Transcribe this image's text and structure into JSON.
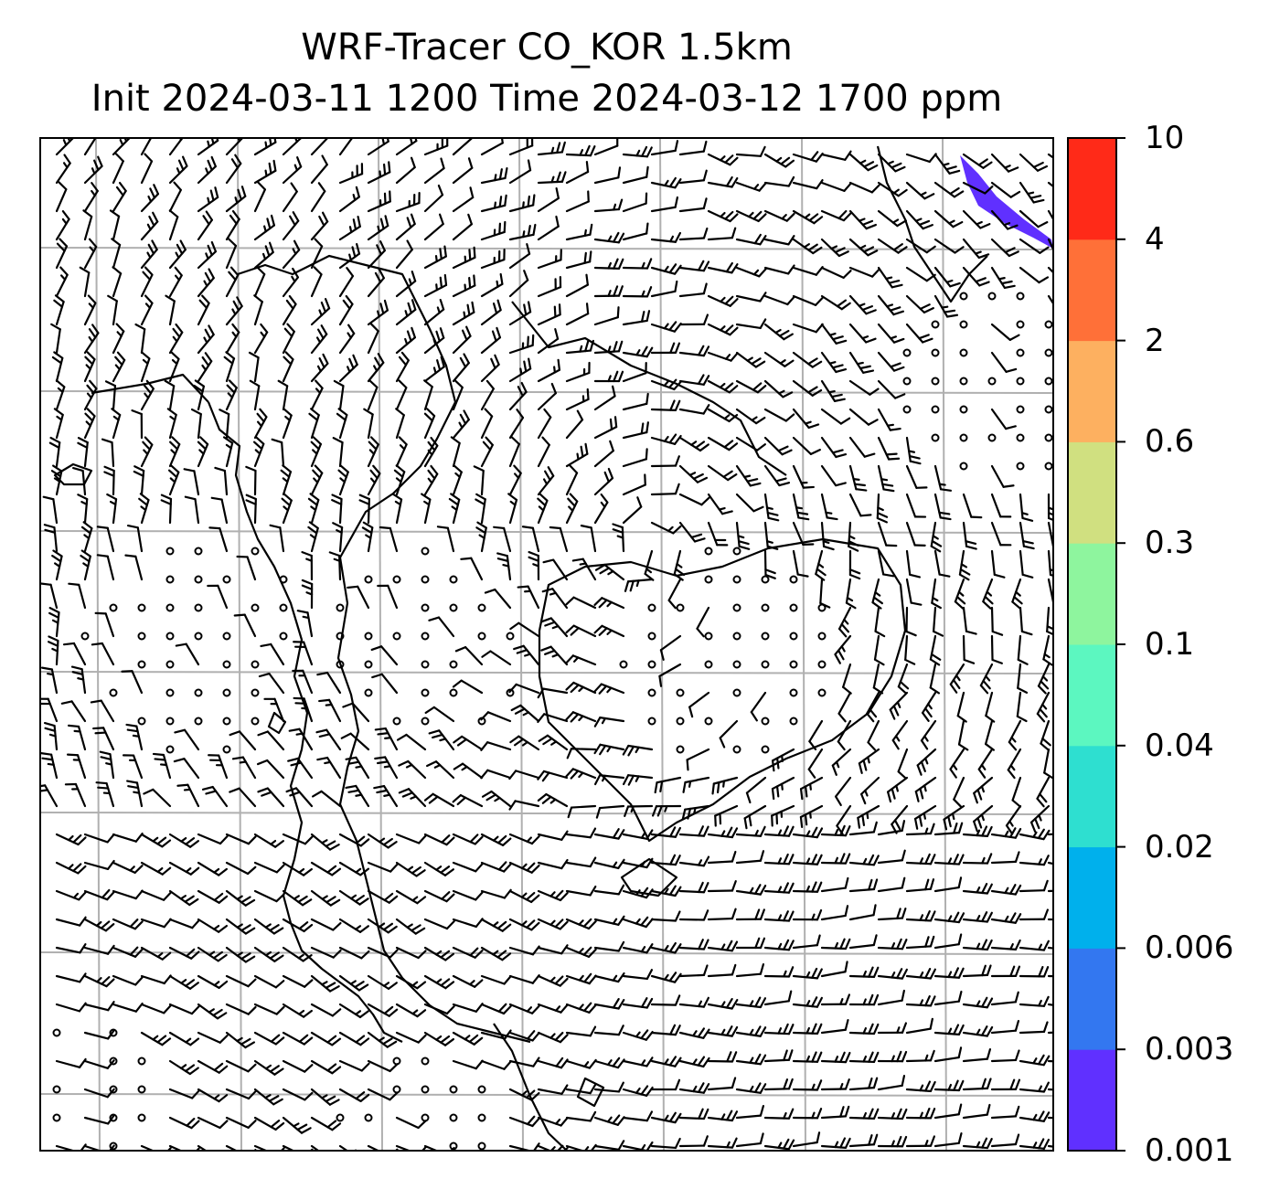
{
  "title": {
    "line1": "WRF-Tracer CO_KOR 1.5km",
    "line2": "Init 2024-03-11 1200 Time 2024-03-12 1700 ppm"
  },
  "colorbar": {
    "levels": [
      "0.001",
      "0.003",
      "0.006",
      "0.02",
      "0.04",
      "0.1",
      "0.3",
      "0.6",
      "2",
      "4",
      "10"
    ],
    "colors": [
      "#6030ff",
      "#3377f0",
      "#00b0ec",
      "#2edfd0",
      "#5cf7c0",
      "#8ef59e",
      "#d0e080",
      "#fdb060",
      "#ff7038",
      "#ff2a18"
    ]
  },
  "map": {
    "grid_color": "#b0b0b0",
    "tracer_plume_color": "#6030ff",
    "wind_barbs": "black"
  }
}
